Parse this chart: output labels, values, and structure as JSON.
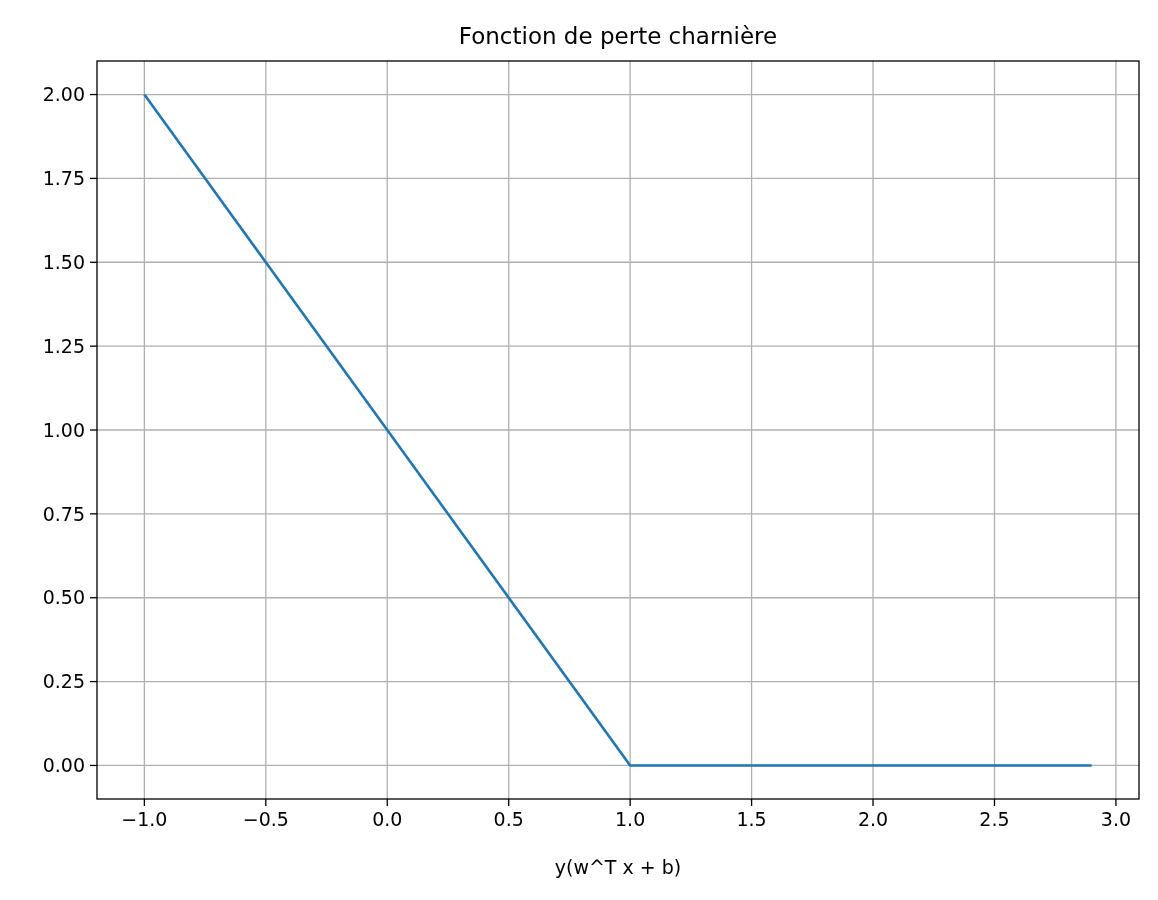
{
  "chart_data": {
    "type": "line",
    "title": "Fonction de perte charnière",
    "xlabel": "y(w^T x + b)",
    "x": [
      -1,
      1,
      2.9
    ],
    "series": [
      {
        "color": "#1f77b4",
        "values": [
          2,
          0,
          0
        ]
      }
    ],
    "xlim": [
      -1.195,
      3.095
    ],
    "ylim": [
      -0.1,
      2.1
    ],
    "xticks": [
      {
        "value": -1,
        "label": "−1.0"
      },
      {
        "value": -0.5,
        "label": "−0.5"
      },
      {
        "value": 0,
        "label": "0.0"
      },
      {
        "value": 0.5,
        "label": "0.5"
      },
      {
        "value": 1,
        "label": "1.0"
      },
      {
        "value": 1.5,
        "label": "1.5"
      },
      {
        "value": 2,
        "label": "2.0"
      },
      {
        "value": 2.5,
        "label": "2.5"
      },
      {
        "value": 3,
        "label": "3.0"
      }
    ],
    "yticks": [
      {
        "value": 0,
        "label": "0.00"
      },
      {
        "value": 0.25,
        "label": "0.25"
      },
      {
        "value": 0.5,
        "label": "0.50"
      },
      {
        "value": 0.75,
        "label": "0.75"
      },
      {
        "value": 1,
        "label": "1.00"
      },
      {
        "value": 1.25,
        "label": "1.25"
      },
      {
        "value": 1.5,
        "label": "1.50"
      },
      {
        "value": 1.75,
        "label": "1.75"
      },
      {
        "value": 2,
        "label": "2.00"
      }
    ],
    "grid": true,
    "marker": "none",
    "line_style": "solid"
  }
}
